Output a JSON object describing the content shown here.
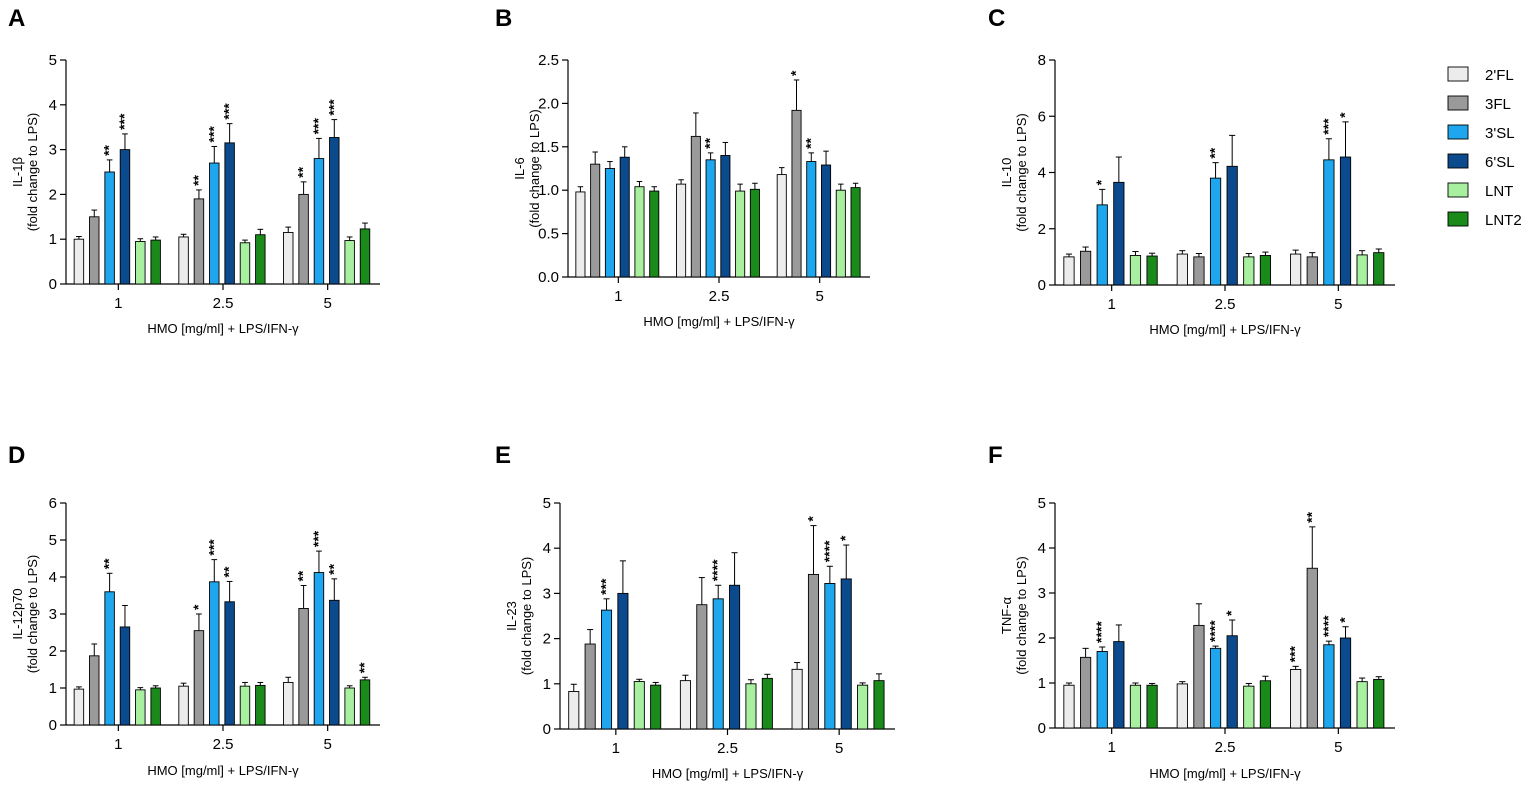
{
  "legend": [
    {
      "name": "2'FL",
      "color": "#ececec"
    },
    {
      "name": "3FL",
      "color": "#9a9a9a"
    },
    {
      "name": "3'SL",
      "color": "#1ea7ee"
    },
    {
      "name": "6'SL",
      "color": "#0b4a8c"
    },
    {
      "name": "LNT",
      "color": "#a8f0a0"
    },
    {
      "name": "LNT2",
      "color": "#1a8a1a"
    }
  ],
  "chart_data": [
    {
      "type": "bar",
      "panel": "A",
      "ylabel": "IL-1β",
      "ylabel2": "(fold change to  LPS)",
      "xlabel": "HMO [mg/ml] + LPS/IFN-γ",
      "categories": [
        "1",
        "2.5",
        "5"
      ],
      "ylim": [
        0,
        5
      ],
      "yticks": [
        "0",
        "1",
        "2",
        "3",
        "4",
        "5"
      ],
      "series": [
        {
          "name": "2'FL",
          "values": [
            1.0,
            1.05,
            1.15
          ],
          "errors": [
            0.06,
            0.06,
            0.12
          ],
          "sig": [
            "",
            "",
            ""
          ]
        },
        {
          "name": "3FL",
          "values": [
            1.5,
            1.9,
            2.0
          ],
          "errors": [
            0.15,
            0.2,
            0.28
          ],
          "sig": [
            "",
            "**",
            "**"
          ]
        },
        {
          "name": "3'SL",
          "values": [
            2.5,
            2.7,
            2.8
          ],
          "errors": [
            0.27,
            0.37,
            0.45
          ],
          "sig": [
            "**",
            "***",
            "***"
          ]
        },
        {
          "name": "6'SL",
          "values": [
            3.0,
            3.15,
            3.27
          ],
          "errors": [
            0.35,
            0.43,
            0.4
          ],
          "sig": [
            "***",
            "***",
            "***"
          ]
        },
        {
          "name": "LNT",
          "values": [
            0.95,
            0.92,
            0.97
          ],
          "errors": [
            0.06,
            0.06,
            0.08
          ],
          "sig": [
            "",
            "",
            ""
          ]
        },
        {
          "name": "LNT2",
          "values": [
            0.98,
            1.1,
            1.23
          ],
          "errors": [
            0.07,
            0.12,
            0.13
          ],
          "sig": [
            "",
            "",
            ""
          ]
        }
      ]
    },
    {
      "type": "bar",
      "panel": "B",
      "ylabel": "IL-6",
      "ylabel2": "(fold change to  LPS)",
      "xlabel": "HMO [mg/ml] + LPS/IFN-γ",
      "categories": [
        "1",
        "2.5",
        "5"
      ],
      "ylim": [
        0,
        2.5
      ],
      "yticks": [
        "0.0",
        "0.5",
        "1.0",
        "1.5",
        "2.0",
        "2.5"
      ],
      "series": [
        {
          "name": "2'FL",
          "values": [
            0.98,
            1.07,
            1.18
          ],
          "errors": [
            0.06,
            0.05,
            0.08
          ],
          "sig": [
            "",
            "",
            ""
          ]
        },
        {
          "name": "3FL",
          "values": [
            1.3,
            1.62,
            1.92
          ],
          "errors": [
            0.14,
            0.27,
            0.35
          ],
          "sig": [
            "",
            "",
            "*"
          ]
        },
        {
          "name": "3'SL",
          "values": [
            1.25,
            1.35,
            1.33
          ],
          "errors": [
            0.08,
            0.08,
            0.1
          ],
          "sig": [
            "",
            "**",
            "**"
          ]
        },
        {
          "name": "6'SL",
          "values": [
            1.38,
            1.4,
            1.29
          ],
          "errors": [
            0.12,
            0.15,
            0.16
          ],
          "sig": [
            "",
            "",
            ""
          ]
        },
        {
          "name": "LNT",
          "values": [
            1.04,
            0.99,
            1.0
          ],
          "errors": [
            0.06,
            0.08,
            0.07
          ],
          "sig": [
            "",
            "",
            ""
          ]
        },
        {
          "name": "LNT2",
          "values": [
            0.99,
            1.01,
            1.03
          ],
          "errors": [
            0.05,
            0.07,
            0.05
          ],
          "sig": [
            "",
            "",
            ""
          ]
        }
      ]
    },
    {
      "type": "bar",
      "panel": "C",
      "ylabel": "IL-10",
      "ylabel2": "(fold change to  LPS)",
      "xlabel": "HMO [mg/ml] + LPS/IFN-γ",
      "categories": [
        "1",
        "2.5",
        "5"
      ],
      "ylim": [
        0,
        8
      ],
      "yticks": [
        "0",
        "2",
        "4",
        "6",
        "8"
      ],
      "series": [
        {
          "name": "2'FL",
          "values": [
            1.0,
            1.1,
            1.1
          ],
          "errors": [
            0.1,
            0.12,
            0.14
          ],
          "sig": [
            "",
            "",
            ""
          ]
        },
        {
          "name": "3FL",
          "values": [
            1.2,
            1.0,
            1.0
          ],
          "errors": [
            0.15,
            0.12,
            0.15
          ],
          "sig": [
            "",
            "",
            ""
          ]
        },
        {
          "name": "3'SL",
          "values": [
            2.85,
            3.8,
            4.45
          ],
          "errors": [
            0.55,
            0.55,
            0.75
          ],
          "sig": [
            "*",
            "**",
            "***"
          ]
        },
        {
          "name": "6'SL",
          "values": [
            3.65,
            4.22,
            4.55
          ],
          "errors": [
            0.9,
            1.1,
            1.25
          ],
          "sig": [
            "",
            "",
            "*"
          ]
        },
        {
          "name": "LNT",
          "values": [
            1.05,
            1.0,
            1.07
          ],
          "errors": [
            0.14,
            0.12,
            0.15
          ],
          "sig": [
            "",
            "",
            ""
          ]
        },
        {
          "name": "LNT2",
          "values": [
            1.03,
            1.05,
            1.15
          ],
          "errors": [
            0.1,
            0.12,
            0.13
          ],
          "sig": [
            "",
            "",
            ""
          ]
        }
      ]
    },
    {
      "type": "bar",
      "panel": "D",
      "ylabel": "IL-12p70",
      "ylabel2": "(fold change to  LPS)",
      "xlabel": "HMO [mg/ml] + LPS/IFN-γ",
      "categories": [
        "1",
        "2.5",
        "5"
      ],
      "ylim": [
        0,
        6
      ],
      "yticks": [
        "0",
        "1",
        "2",
        "3",
        "4",
        "5",
        "6"
      ],
      "series": [
        {
          "name": "2'FL",
          "values": [
            0.97,
            1.05,
            1.15
          ],
          "errors": [
            0.06,
            0.08,
            0.14
          ],
          "sig": [
            "",
            "",
            ""
          ]
        },
        {
          "name": "3FL",
          "values": [
            1.87,
            2.55,
            3.15
          ],
          "errors": [
            0.32,
            0.45,
            0.62
          ],
          "sig": [
            "",
            "*",
            "**"
          ]
        },
        {
          "name": "3'SL",
          "values": [
            3.6,
            3.87,
            4.12
          ],
          "errors": [
            0.5,
            0.6,
            0.58
          ],
          "sig": [
            "**",
            "***",
            "***"
          ]
        },
        {
          "name": "6'SL",
          "values": [
            2.65,
            3.33,
            3.37
          ],
          "errors": [
            0.58,
            0.55,
            0.58
          ],
          "sig": [
            "",
            "**",
            "**"
          ]
        },
        {
          "name": "LNT",
          "values": [
            0.95,
            1.05,
            1.0
          ],
          "errors": [
            0.06,
            0.1,
            0.06
          ],
          "sig": [
            "",
            "",
            ""
          ]
        },
        {
          "name": "LNT2",
          "values": [
            1.0,
            1.07,
            1.22
          ],
          "errors": [
            0.06,
            0.08,
            0.07
          ],
          "sig": [
            "",
            "",
            "**"
          ]
        }
      ]
    },
    {
      "type": "bar",
      "panel": "E",
      "ylabel": "IL-23",
      "ylabel2": "(fold change to  LPS)",
      "xlabel": "HMO [mg/ml] + LPS/IFN-γ",
      "categories": [
        "1",
        "2.5",
        "5"
      ],
      "ylim": [
        0,
        5
      ],
      "yticks": [
        "0",
        "1",
        "2",
        "3",
        "4",
        "5"
      ],
      "series": [
        {
          "name": "2'FL",
          "values": [
            0.83,
            1.07,
            1.32
          ],
          "errors": [
            0.16,
            0.12,
            0.15
          ],
          "sig": [
            "",
            "",
            ""
          ]
        },
        {
          "name": "3FL",
          "values": [
            1.88,
            2.75,
            3.42
          ],
          "errors": [
            0.32,
            0.6,
            1.08
          ],
          "sig": [
            "",
            "",
            "*"
          ]
        },
        {
          "name": "3'SL",
          "values": [
            2.63,
            2.88,
            3.22
          ],
          "errors": [
            0.25,
            0.3,
            0.38
          ],
          "sig": [
            "***",
            "****",
            "****"
          ]
        },
        {
          "name": "6'SL",
          "values": [
            3.0,
            3.18,
            3.32
          ],
          "errors": [
            0.72,
            0.72,
            0.75
          ],
          "sig": [
            "",
            "",
            "*"
          ]
        },
        {
          "name": "LNT",
          "values": [
            1.05,
            1.0,
            0.97
          ],
          "errors": [
            0.05,
            0.09,
            0.05
          ],
          "sig": [
            "",
            "",
            ""
          ]
        },
        {
          "name": "LNT2",
          "values": [
            0.97,
            1.12,
            1.07
          ],
          "errors": [
            0.06,
            0.09,
            0.15
          ],
          "sig": [
            "",
            "",
            ""
          ]
        }
      ]
    },
    {
      "type": "bar",
      "panel": "F",
      "ylabel": "TNF-α",
      "ylabel2": "(fold change to  LPS)",
      "xlabel": "HMO [mg/ml] + LPS/IFN-γ",
      "categories": [
        "1",
        "2.5",
        "5"
      ],
      "ylim": [
        0,
        5
      ],
      "yticks": [
        "0",
        "1",
        "2",
        "3",
        "4",
        "5"
      ],
      "series": [
        {
          "name": "2'FL",
          "values": [
            0.95,
            0.98,
            1.3
          ],
          "errors": [
            0.05,
            0.05,
            0.07
          ],
          "sig": [
            "",
            "",
            "***"
          ]
        },
        {
          "name": "3FL",
          "values": [
            1.57,
            2.28,
            3.55
          ],
          "errors": [
            0.2,
            0.48,
            0.92
          ],
          "sig": [
            "",
            "",
            "**"
          ]
        },
        {
          "name": "3'SL",
          "values": [
            1.7,
            1.77,
            1.85
          ],
          "errors": [
            0.1,
            0.05,
            0.08
          ],
          "sig": [
            "****",
            "****",
            "****"
          ]
        },
        {
          "name": "6'SL",
          "values": [
            1.92,
            2.05,
            2.0
          ],
          "errors": [
            0.37,
            0.35,
            0.25
          ],
          "sig": [
            "",
            "*",
            "*"
          ]
        },
        {
          "name": "LNT",
          "values": [
            0.95,
            0.93,
            1.03
          ],
          "errors": [
            0.05,
            0.06,
            0.08
          ],
          "sig": [
            "",
            "",
            ""
          ]
        },
        {
          "name": "LNT2",
          "values": [
            0.95,
            1.05,
            1.08
          ],
          "errors": [
            0.04,
            0.1,
            0.06
          ],
          "sig": [
            "",
            "",
            ""
          ]
        }
      ]
    }
  ]
}
